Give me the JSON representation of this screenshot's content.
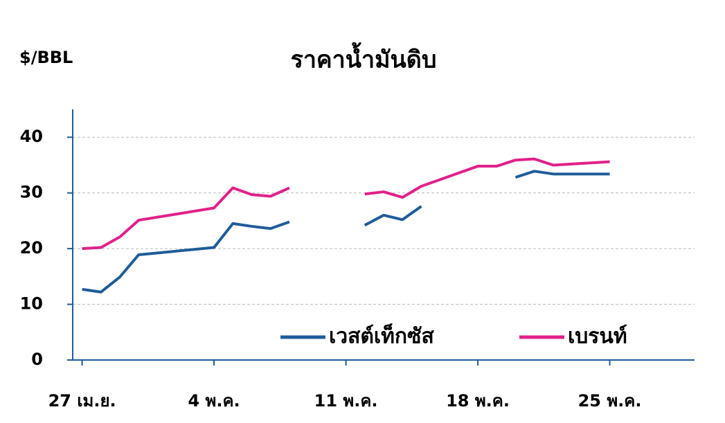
{
  "chart_data": {
    "type": "line",
    "title": "ราคาน้ำมันดิบ",
    "y_label": "$/BBL",
    "x": [
      0,
      1,
      2,
      3,
      7,
      8,
      9,
      10,
      11,
      14,
      15,
      16,
      17,
      18,
      21,
      22,
      23,
      24,
      25,
      28
    ],
    "series": [
      {
        "name": "เวสต์เท็กซัส",
        "color": "#1f5c99",
        "values": [
          12.7,
          12.2,
          14.9,
          18.9,
          20.2,
          24.5,
          24.0,
          23.6,
          24.8,
          null,
          24.2,
          26.0,
          25.2,
          27.6,
          null,
          null,
          32.8,
          33.9,
          33.4,
          33.4
        ]
      },
      {
        "name": "เบรนท์",
        "color": "#e0218a",
        "values": [
          20.0,
          20.2,
          22.1,
          25.1,
          27.3,
          30.9,
          29.7,
          29.4,
          30.9,
          null,
          29.8,
          30.2,
          29.2,
          31.2,
          34.8,
          34.8,
          35.9,
          36.1,
          35.0,
          35.6
        ]
      }
    ],
    "xlim": [
      -0.5,
      32.5
    ],
    "xticks": [
      {
        "value": 0,
        "label": "27 เม.ย."
      },
      {
        "value": 7,
        "label": "4 พ.ค."
      },
      {
        "value": 14,
        "label": "11 พ.ค."
      },
      {
        "value": 21,
        "label": "18 พ.ค."
      },
      {
        "value": 28,
        "label": "25 พ.ค."
      }
    ],
    "ylim": [
      0,
      45
    ],
    "yticks": [
      0,
      10,
      20,
      30,
      40
    ],
    "grid": true,
    "legend": "bottom-right"
  }
}
